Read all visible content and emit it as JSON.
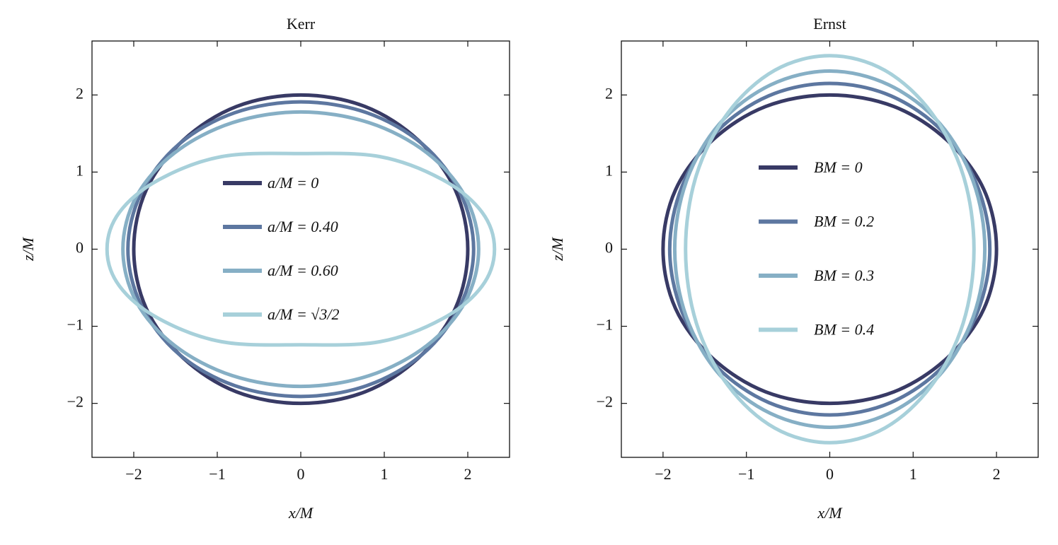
{
  "chart_data": [
    {
      "type": "line",
      "title": "Kerr",
      "xlabel": "x/M",
      "ylabel": "z/M",
      "xlim": [
        -2.5,
        2.5
      ],
      "ylim": [
        -2.7,
        2.7
      ],
      "xticks": [
        {
          "value": -2,
          "label": "−2"
        },
        {
          "value": -1,
          "label": "−1"
        },
        0,
        1,
        2
      ],
      "yticks": [
        {
          "value": -2,
          "label": "−2"
        },
        {
          "value": -1,
          "label": "−1"
        },
        0,
        1,
        2
      ],
      "series": [
        {
          "name": "a/M = 0",
          "color": "#383a65",
          "x": [
            2,
            1.85,
            1.41,
            0.77,
            0,
            -0.77,
            -1.41,
            -1.85,
            -2,
            -1.85,
            -1.41,
            -0.77,
            0,
            0.77,
            1.41,
            1.85
          ],
          "y": [
            0,
            0.77,
            1.41,
            1.85,
            2,
            1.85,
            1.41,
            0.77,
            0,
            -0.77,
            -1.41,
            -1.85,
            -2,
            -1.85,
            -1.41,
            -0.77
          ]
        },
        {
          "name": "a/M = 0.40",
          "color": "#5d77a0",
          "x": [
            2.07,
            1.91,
            1.46,
            0.79,
            0,
            -0.79,
            -1.46,
            -1.91,
            -2.07,
            -1.91,
            -1.46,
            -0.79,
            0,
            0.79,
            1.46,
            1.91
          ],
          "y": [
            0,
            0.73,
            1.36,
            1.77,
            1.91,
            1.77,
            1.36,
            0.73,
            0,
            -0.73,
            -1.36,
            -1.77,
            -1.91,
            -1.77,
            -1.36,
            -0.73
          ]
        },
        {
          "name": "a/M = 0.60",
          "color": "#86afc5",
          "x": [
            2.13,
            1.97,
            1.51,
            0.82,
            0,
            -0.82,
            -1.51,
            -1.97,
            -2.13,
            -1.97,
            -1.51,
            -0.82,
            0,
            0.82,
            1.51,
            1.97
          ],
          "y": [
            0,
            0.68,
            1.25,
            1.64,
            1.78,
            1.64,
            1.25,
            0.68,
            0,
            -0.68,
            -1.25,
            -1.64,
            -1.78,
            -1.64,
            -1.25,
            -0.68
          ]
        },
        {
          "name": "a/M = √3/2",
          "color": "#a7d0da",
          "x": [
            2.32,
            2.17,
            1.7,
            0.95,
            0,
            -0.95,
            -1.7,
            -2.17,
            -2.32,
            -2.17,
            -1.7,
            -0.95,
            0,
            0.95,
            1.7,
            2.17
          ],
          "y": [
            0,
            0.48,
            0.9,
            1.2,
            1.24,
            1.2,
            0.9,
            0.48,
            0,
            -0.48,
            -0.9,
            -1.2,
            -1.24,
            -1.2,
            -0.9,
            -0.48
          ]
        }
      ]
    },
    {
      "type": "line",
      "title": "Ernst",
      "xlabel": "x/M",
      "ylabel": "z/M",
      "xlim": [
        -2.5,
        2.5
      ],
      "ylim": [
        -2.7,
        2.7
      ],
      "xticks": [
        {
          "value": -2,
          "label": "−2"
        },
        {
          "value": -1,
          "label": "−1"
        },
        0,
        1,
        2
      ],
      "yticks": [
        {
          "value": -2,
          "label": "−2"
        },
        {
          "value": -1,
          "label": "−1"
        },
        0,
        1,
        2
      ],
      "series": [
        {
          "name": "BM = 0",
          "color": "#383a65",
          "x": [
            2,
            1.85,
            1.41,
            0.77,
            0,
            -0.77,
            -1.41,
            -1.85,
            -2,
            -1.85,
            -1.41,
            -0.77,
            0,
            0.77,
            1.41,
            1.85
          ],
          "y": [
            0,
            0.77,
            1.41,
            1.85,
            2,
            1.85,
            1.41,
            0.77,
            0,
            -0.77,
            -1.41,
            -1.85,
            -2,
            -1.85,
            -1.41,
            -0.77
          ]
        },
        {
          "name": "BM = 0.2",
          "color": "#5d77a0",
          "x": [
            1.92,
            1.77,
            1.36,
            0.73,
            0,
            -0.73,
            -1.36,
            -1.77,
            -1.92,
            -1.77,
            -1.36,
            -0.73,
            0,
            0.73,
            1.36,
            1.77
          ],
          "y": [
            0,
            0.82,
            1.52,
            1.99,
            2.15,
            1.99,
            1.52,
            0.82,
            0,
            -0.82,
            -1.52,
            -1.99,
            -2.15,
            -1.99,
            -1.52,
            -0.82
          ]
        },
        {
          "name": "BM = 0.3",
          "color": "#86afc5",
          "x": [
            1.86,
            1.72,
            1.32,
            0.71,
            0,
            -0.71,
            -1.32,
            -1.72,
            -1.86,
            -1.72,
            -1.32,
            -0.71,
            0,
            0.71,
            1.32,
            1.72
          ],
          "y": [
            0,
            0.88,
            1.63,
            2.13,
            2.31,
            2.13,
            1.63,
            0.88,
            0,
            -0.88,
            -1.63,
            -2.13,
            -2.31,
            -2.13,
            -1.63,
            -0.88
          ]
        },
        {
          "name": "BM = 0.4",
          "color": "#a7d0da",
          "x": [
            1.73,
            1.6,
            1.22,
            0.66,
            0,
            -0.66,
            -1.22,
            -1.6,
            -1.73,
            -1.6,
            -1.22,
            -0.66,
            0,
            0.66,
            1.22,
            1.6
          ],
          "y": [
            0,
            0.96,
            1.77,
            2.32,
            2.51,
            2.32,
            1.77,
            0.96,
            0,
            -0.96,
            -1.77,
            -2.32,
            -2.51,
            -2.32,
            -1.77,
            -0.96
          ]
        }
      ]
    }
  ]
}
